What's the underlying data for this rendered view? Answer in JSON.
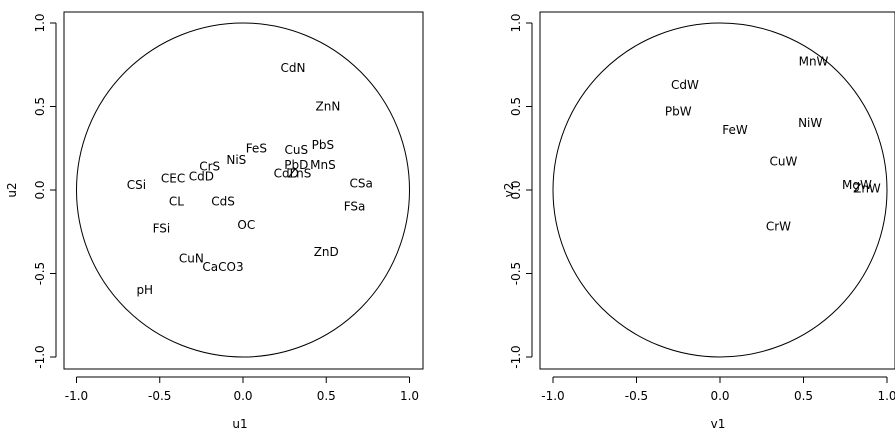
{
  "chart_data": [
    {
      "type": "scatter",
      "title": "",
      "xlabel": "u1",
      "ylabel": "u2",
      "xlim": [
        -1.1,
        1.1
      ],
      "ylim": [
        -1.1,
        1.1
      ],
      "xticks": [
        "-1.0",
        "-0.5",
        "0.0",
        "0.5",
        "1.0"
      ],
      "yticks": [
        "-1.0",
        "-0.5",
        "0.0",
        "0.5",
        "1.0"
      ],
      "unit_circle": true,
      "points": [
        {
          "label": "CdN",
          "x": 0.3,
          "y": 0.73
        },
        {
          "label": "ZnN",
          "x": 0.51,
          "y": 0.5
        },
        {
          "label": "PbS",
          "x": 0.48,
          "y": 0.27
        },
        {
          "label": "FeS",
          "x": 0.08,
          "y": 0.25
        },
        {
          "label": "CuS",
          "x": 0.32,
          "y": 0.24
        },
        {
          "label": "NiS",
          "x": -0.04,
          "y": 0.18
        },
        {
          "label": "CrS",
          "x": -0.2,
          "y": 0.14
        },
        {
          "label": "PbD",
          "x": 0.32,
          "y": 0.15
        },
        {
          "label": "MnS",
          "x": 0.48,
          "y": 0.15
        },
        {
          "label": "CdD",
          "x": -0.25,
          "y": 0.08
        },
        {
          "label": "CEC",
          "x": -0.42,
          "y": 0.07
        },
        {
          "label": "CdD",
          "x": 0.26,
          "y": 0.1
        },
        {
          "label": "ZnS",
          "x": 0.34,
          "y": 0.1
        },
        {
          "label": "CSi",
          "x": -0.64,
          "y": 0.03
        },
        {
          "label": "CSa",
          "x": 0.71,
          "y": 0.04
        },
        {
          "label": "CL",
          "x": -0.4,
          "y": -0.07
        },
        {
          "label": "CdS",
          "x": -0.12,
          "y": -0.07
        },
        {
          "label": "FSa",
          "x": 0.67,
          "y": -0.1
        },
        {
          "label": "OC",
          "x": 0.02,
          "y": -0.21
        },
        {
          "label": "FSi",
          "x": -0.49,
          "y": -0.23
        },
        {
          "label": "ZnD",
          "x": 0.5,
          "y": -0.37
        },
        {
          "label": "CuN",
          "x": -0.31,
          "y": -0.41
        },
        {
          "label": "CaCO3",
          "x": -0.12,
          "y": -0.46
        },
        {
          "label": "pH",
          "x": -0.59,
          "y": -0.6
        }
      ]
    },
    {
      "type": "scatter",
      "title": "",
      "xlabel": "v1",
      "ylabel": "v2",
      "xlim": [
        -1.1,
        1.1
      ],
      "ylim": [
        -1.1,
        1.1
      ],
      "xticks": [
        "-1.0",
        "-0.5",
        "0.0",
        "0.5",
        "1.0"
      ],
      "yticks": [
        "-1.0",
        "-0.5",
        "0.0",
        "0.5",
        "1.0"
      ],
      "unit_circle": true,
      "points": [
        {
          "label": "MnW",
          "x": 0.56,
          "y": 0.77
        },
        {
          "label": "CdW",
          "x": -0.21,
          "y": 0.63
        },
        {
          "label": "PbW",
          "x": -0.25,
          "y": 0.47
        },
        {
          "label": "NiW",
          "x": 0.54,
          "y": 0.4
        },
        {
          "label": "FeW",
          "x": 0.09,
          "y": 0.36
        },
        {
          "label": "CuW",
          "x": 0.38,
          "y": 0.17
        },
        {
          "label": "MgW",
          "x": 0.82,
          "y": 0.03
        },
        {
          "label": "ZnW",
          "x": 0.88,
          "y": 0.01
        },
        {
          "label": "CrW",
          "x": 0.35,
          "y": -0.22
        }
      ]
    }
  ]
}
